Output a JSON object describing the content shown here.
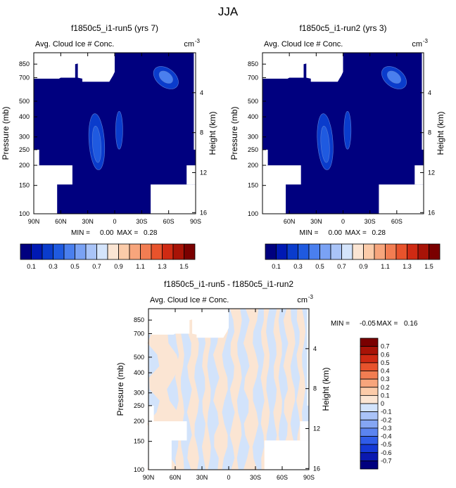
{
  "page_title": "JJA",
  "colors": {
    "main_palette": [
      "#00007f",
      "#0019b3",
      "#0a3ccc",
      "#1f5ae0",
      "#4a7fee",
      "#7aa2f4",
      "#a9c4f8",
      "#d4e4fb",
      "#fbe5d3",
      "#fbcba9",
      "#f7a57c",
      "#f27d52",
      "#e8532c",
      "#cf2a13",
      "#a81307",
      "#7a0000"
    ],
    "diff_palette": [
      "#00007f",
      "#0a19b0",
      "#1539d6",
      "#2f5ce8",
      "#5b84f0",
      "#85a6f4",
      "#aac3f8",
      "#d2e3fb",
      "#fbe5d3",
      "#fbcba9",
      "#f7a57c",
      "#f27d52",
      "#e8532c",
      "#cf2a13",
      "#a81307",
      "#7a0000"
    ],
    "missing": "#ffffff",
    "field_fill": "#00007f"
  },
  "chart_data": [
    {
      "type": "heatmap",
      "title": "f1850c5_i1-run5 (yrs 7)",
      "subtitle": "Avg. Cloud Ice # Conc.",
      "units": "cm",
      "units_exp": "-3",
      "ylabel": "Pressure (mb)",
      "ylabel_right": "Height (km)",
      "x_ticks": [
        "90N",
        "60N",
        "30N",
        "0",
        "30S",
        "60S",
        "90S"
      ],
      "y_ticks": [
        "100",
        "150",
        "200",
        "250",
        "300",
        "400",
        "500",
        "700",
        "850"
      ],
      "y_ticks_right": [
        "16",
        "12",
        "8",
        "4"
      ],
      "xlim": [
        90,
        -90
      ],
      "ylim": [
        1000,
        100
      ],
      "stats": {
        "min_label": "MIN =",
        "min": "0.00",
        "max_label": "MAX =",
        "max": "0.28"
      },
      "contour_levels": [
        0.1,
        0.2
      ],
      "maxima": [
        {
          "lat": 20,
          "p": 280
        },
        {
          "lat": -5,
          "p": 330
        },
        {
          "lat": -57,
          "p": 700
        }
      ]
    },
    {
      "type": "heatmap",
      "title": "f1850c5_i1-run2 (yrs 3)",
      "subtitle": "Avg. Cloud Ice # Conc.",
      "units": "cm",
      "units_exp": "-3",
      "ylabel": "Pressure (mb)",
      "ylabel_right": "Height (km)",
      "x_ticks": [
        "60N",
        "30N",
        "0",
        "30S",
        "60S"
      ],
      "y_ticks": [
        "100",
        "150",
        "200",
        "250",
        "300",
        "400",
        "500",
        "700",
        "850"
      ],
      "y_ticks_right": [
        "16",
        "12",
        "8",
        "4"
      ],
      "xlim": [
        90,
        -90
      ],
      "ylim": [
        1000,
        100
      ],
      "stats": {
        "min_label": "MIN =",
        "min": "0.00",
        "max_label": "MAX =",
        "max": "0.28"
      },
      "contour_levels": [
        0.1,
        0.2
      ],
      "maxima": [
        {
          "lat": 20,
          "p": 280
        },
        {
          "lat": -5,
          "p": 330
        },
        {
          "lat": -57,
          "p": 700
        }
      ]
    },
    {
      "type": "heatmap",
      "title": "f1850c5_i1-run5 - f1850c5_i1-run2",
      "subtitle": "Avg. Cloud Ice # Conc.",
      "units": "cm",
      "units_exp": "-3",
      "ylabel": "Pressure (mb)",
      "ylabel_right": "Height (km)",
      "x_ticks": [
        "90N",
        "60N",
        "30N",
        "0",
        "30S",
        "60S",
        "90S"
      ],
      "y_ticks": [
        "100",
        "150",
        "200",
        "250",
        "300",
        "400",
        "500",
        "700",
        "850"
      ],
      "y_ticks_right": [
        "16",
        "12",
        "8",
        "4"
      ],
      "xlim": [
        90,
        -90
      ],
      "ylim": [
        1000,
        100
      ],
      "stats": {
        "min_label": "MIN =",
        "min": "-0.05",
        "max_label": "MAX =",
        "max": "0.16"
      },
      "diff_range": [
        -0.05,
        0.16
      ]
    }
  ],
  "colorbar_main": {
    "labels": [
      "0.1",
      "0.3",
      "0.5",
      "0.7",
      "0.9",
      "1.1",
      "1.3",
      "1.5"
    ],
    "levels": [
      0.1,
      0.2,
      0.3,
      0.4,
      0.5,
      0.6,
      0.7,
      0.8,
      0.9,
      1.0,
      1.1,
      1.2,
      1.3,
      1.4,
      1.5
    ]
  },
  "colorbar_diff": {
    "labels": [
      "0.7",
      "0.6",
      "0.5",
      "0.4",
      "0.3",
      "0.2",
      "0.1",
      "0",
      "-0.1",
      "-0.2",
      "-0.3",
      "-0.4",
      "-0.5",
      "-0.6",
      "-0.7"
    ]
  }
}
